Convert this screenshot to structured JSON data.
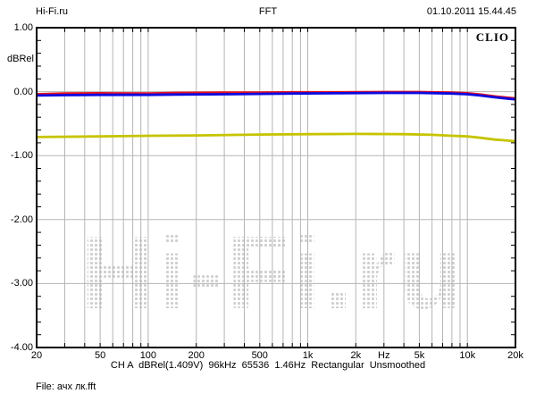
{
  "header": {
    "left": "Hi-Fi.ru",
    "center": "FFT",
    "right": "01.10.2011 15.44.45"
  },
  "plot": {
    "brand": "CLIO",
    "watermark_text": "Hi-Fi.ru"
  },
  "footer": {
    "status": "CH A  dBRel(1.409V)  96kHz  65536  1.46Hz  Rectangular  Unsmoothed",
    "file": "File: ачх лк.fft"
  },
  "chart_data": {
    "type": "line",
    "title": "FFT",
    "xlabel": "Hz",
    "ylabel": "dBRel",
    "x_axis": {
      "scale": "log",
      "min": 20,
      "max": 20000,
      "unit": "Hz",
      "tick_labels": [
        {
          "f": 20,
          "label": "20"
        },
        {
          "f": 50,
          "label": "50"
        },
        {
          "f": 100,
          "label": "100"
        },
        {
          "f": 200,
          "label": "200"
        },
        {
          "f": 500,
          "label": "500"
        },
        {
          "f": 1000,
          "label": "1k"
        },
        {
          "f": 2000,
          "label": "2k"
        },
        {
          "f": 3000,
          "label": "Hz"
        },
        {
          "f": 5000,
          "label": "5k"
        },
        {
          "f": 10000,
          "label": "10k"
        },
        {
          "f": 20000,
          "label": "20k"
        }
      ],
      "grid_frequencies": [
        30,
        40,
        50,
        60,
        70,
        80,
        90,
        100,
        200,
        300,
        400,
        500,
        600,
        700,
        800,
        900,
        1000,
        2000,
        3000,
        4000,
        5000,
        6000,
        7000,
        8000,
        9000,
        10000
      ]
    },
    "y_axis": {
      "label": "dBRel",
      "min": -4,
      "max": 1,
      "major_step": 1,
      "minor_step": 0.2,
      "major_ticks": [
        1,
        0,
        -1,
        -2,
        -3,
        -4
      ],
      "tick_labels": [
        "1.00",
        "0.00",
        "-1.00",
        "-2.00",
        "-3.00",
        "-4.00"
      ],
      "grid_levels": [
        0,
        -1,
        -2,
        -3
      ]
    },
    "grid": true,
    "legend": "none",
    "series": [
      {
        "name": "red-curve",
        "color": "#e8101c",
        "points": [
          [
            20,
            -0.04
          ],
          [
            30,
            -0.03
          ],
          [
            50,
            -0.025
          ],
          [
            100,
            -0.03
          ],
          [
            150,
            -0.02
          ],
          [
            300,
            -0.015
          ],
          [
            500,
            -0.015
          ],
          [
            800,
            -0.01
          ],
          [
            1500,
            -0.01
          ],
          [
            3000,
            -0.005
          ],
          [
            5000,
            -0.005
          ],
          [
            8000,
            -0.015
          ],
          [
            10000,
            -0.025
          ],
          [
            12000,
            -0.045
          ],
          [
            15000,
            -0.075
          ],
          [
            18000,
            -0.095
          ],
          [
            20000,
            -0.105
          ]
        ]
      },
      {
        "name": "blue-curve",
        "color": "#0a0ae0",
        "points": [
          [
            20,
            -0.06
          ],
          [
            30,
            -0.055
          ],
          [
            50,
            -0.05
          ],
          [
            100,
            -0.05
          ],
          [
            150,
            -0.045
          ],
          [
            300,
            -0.04
          ],
          [
            500,
            -0.035
          ],
          [
            800,
            -0.03
          ],
          [
            1500,
            -0.025
          ],
          [
            3000,
            -0.02
          ],
          [
            5000,
            -0.02
          ],
          [
            8000,
            -0.03
          ],
          [
            10000,
            -0.04
          ],
          [
            12000,
            -0.06
          ],
          [
            15000,
            -0.09
          ],
          [
            18000,
            -0.11
          ],
          [
            20000,
            -0.12
          ]
        ]
      },
      {
        "name": "yellow-curve",
        "color": "#c6c400",
        "points": [
          [
            20,
            -0.71
          ],
          [
            50,
            -0.7
          ],
          [
            100,
            -0.69
          ],
          [
            200,
            -0.685
          ],
          [
            500,
            -0.67
          ],
          [
            1000,
            -0.665
          ],
          [
            2000,
            -0.66
          ],
          [
            4000,
            -0.665
          ],
          [
            6000,
            -0.675
          ],
          [
            8000,
            -0.69
          ],
          [
            10000,
            -0.7
          ],
          [
            12000,
            -0.72
          ],
          [
            15000,
            -0.75
          ],
          [
            18000,
            -0.765
          ],
          [
            20000,
            -0.775
          ]
        ]
      }
    ],
    "colors": {
      "frame": "#000000",
      "gridline": "#b5b5b5",
      "background": "#ffffff",
      "watermark_dots": "#cfcfcf"
    }
  }
}
